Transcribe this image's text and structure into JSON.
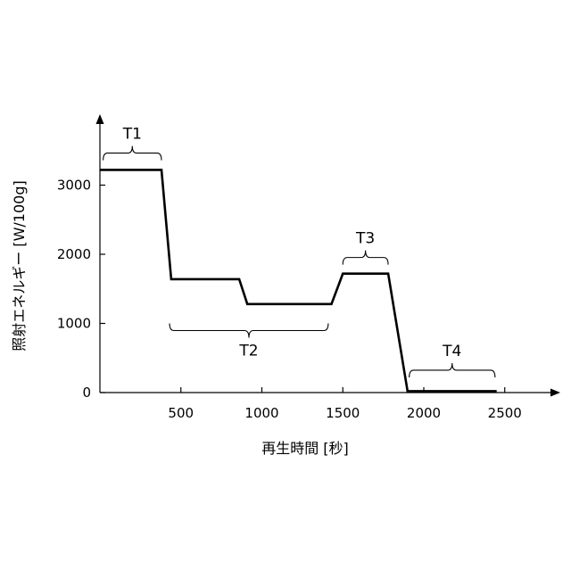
{
  "chart_data": {
    "type": "line",
    "xlabel": "再生時間 [秒]",
    "ylabel": "照射エネルギー [W/100g]",
    "xlim": [
      0,
      2800
    ],
    "ylim": [
      0,
      3900
    ],
    "x_ticks": [
      500,
      1000,
      1500,
      2000,
      2500
    ],
    "y_ticks": [
      0,
      1000,
      2000,
      3000
    ],
    "grid": false,
    "series": [
      {
        "x": [
          0,
          380,
          440,
          860,
          910,
          1430,
          1500,
          1780,
          1900,
          2450
        ],
        "y": [
          3220,
          3220,
          1640,
          1640,
          1280,
          1280,
          1720,
          1720,
          20,
          20
        ]
      }
    ],
    "annotations": [
      {
        "label": "T1",
        "x_start": 20,
        "x_end": 380,
        "side": "above",
        "value_y": 3360
      },
      {
        "label": "T2",
        "x_start": 430,
        "x_end": 1410,
        "side": "below",
        "value_y": 1000
      },
      {
        "label": "T3",
        "x_start": 1500,
        "x_end": 1780,
        "side": "above",
        "value_y": 1850
      },
      {
        "label": "T4",
        "x_start": 1910,
        "x_end": 2440,
        "side": "above",
        "value_y": 220
      }
    ]
  }
}
